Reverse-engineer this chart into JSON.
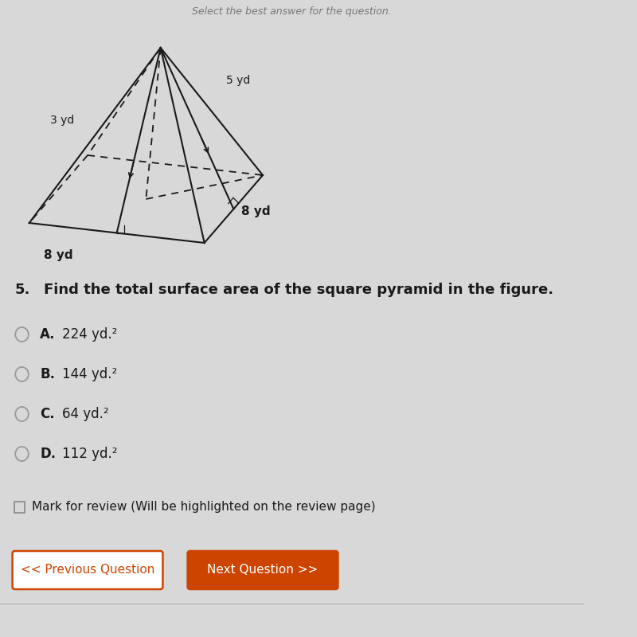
{
  "bg_color": "#d8d8d8",
  "header_text": "Select the best answer for the question.",
  "question_number": "5.",
  "question_text": "Find the total surface area of the square pyramid in the figure.",
  "options": [
    {
      "letter": "A",
      "text": "224 yd.²"
    },
    {
      "letter": "B",
      "text": "144 yd.²"
    },
    {
      "letter": "C",
      "text": "64 yd.²"
    },
    {
      "letter": "D",
      "text": "112 yd.²"
    }
  ],
  "mark_review_text": "Mark for review (Will be highlighted on the review page)",
  "btn_prev_text": "<< Previous Question",
  "btn_next_text": "Next Question >>",
  "btn_color": "#cc4400",
  "btn_border_color": "#cc4400",
  "btn_text_color": "#ffffff",
  "btn_prev_bg": "#ffffff",
  "btn_prev_text_color": "#cc4400",
  "label_3yd": "3 yd",
  "label_5yd": "5 yd",
  "label_8yd_left": "8 yd",
  "label_8yd_right": "8 yd",
  "black": "#1a1a1a",
  "gray_text": "#888888"
}
